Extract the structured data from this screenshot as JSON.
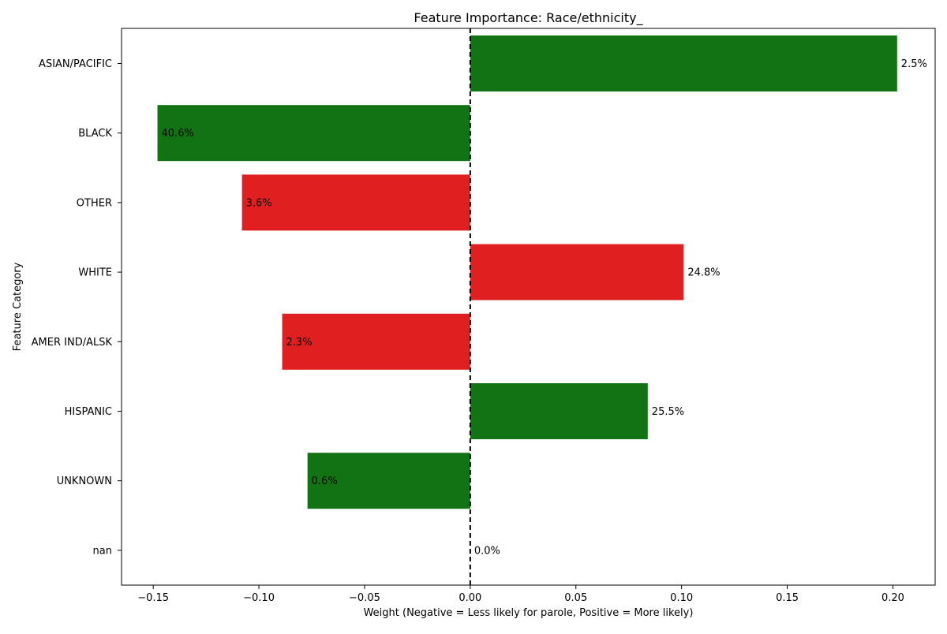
{
  "chart_data": {
    "type": "bar",
    "orientation": "horizontal",
    "title": "Feature Importance: Race/ethnicity_",
    "xlabel": "Weight (Negative = Less likely for parole, Positive = More likely)",
    "ylabel": "Feature Category",
    "xlim": [
      -0.165,
      0.22
    ],
    "xticks": [
      -0.15,
      -0.1,
      -0.05,
      0.0,
      0.05,
      0.1,
      0.15,
      0.2
    ],
    "xtick_labels": [
      "−0.15",
      "−0.10",
      "−0.05",
      "0.00",
      "0.05",
      "0.10",
      "0.15",
      "0.20"
    ],
    "grid": false,
    "zero_line": true,
    "categories": [
      "ASIAN/PACIFIC",
      "BLACK",
      "OTHER",
      "WHITE",
      "AMER IND/ALSK",
      "HISPANIC",
      "UNKNOWN",
      "nan"
    ],
    "values": [
      0.202,
      -0.148,
      -0.108,
      0.101,
      -0.089,
      0.084,
      -0.077,
      0.0
    ],
    "bar_labels": [
      "2.5%",
      "40.6%",
      "3.6%",
      "24.8%",
      "2.3%",
      "25.5%",
      "0.6%",
      "0.0%"
    ],
    "bar_colors": [
      "#117314",
      "#117314",
      "#e02020",
      "#e02020",
      "#e02020",
      "#117314",
      "#117314",
      "#117314"
    ]
  }
}
